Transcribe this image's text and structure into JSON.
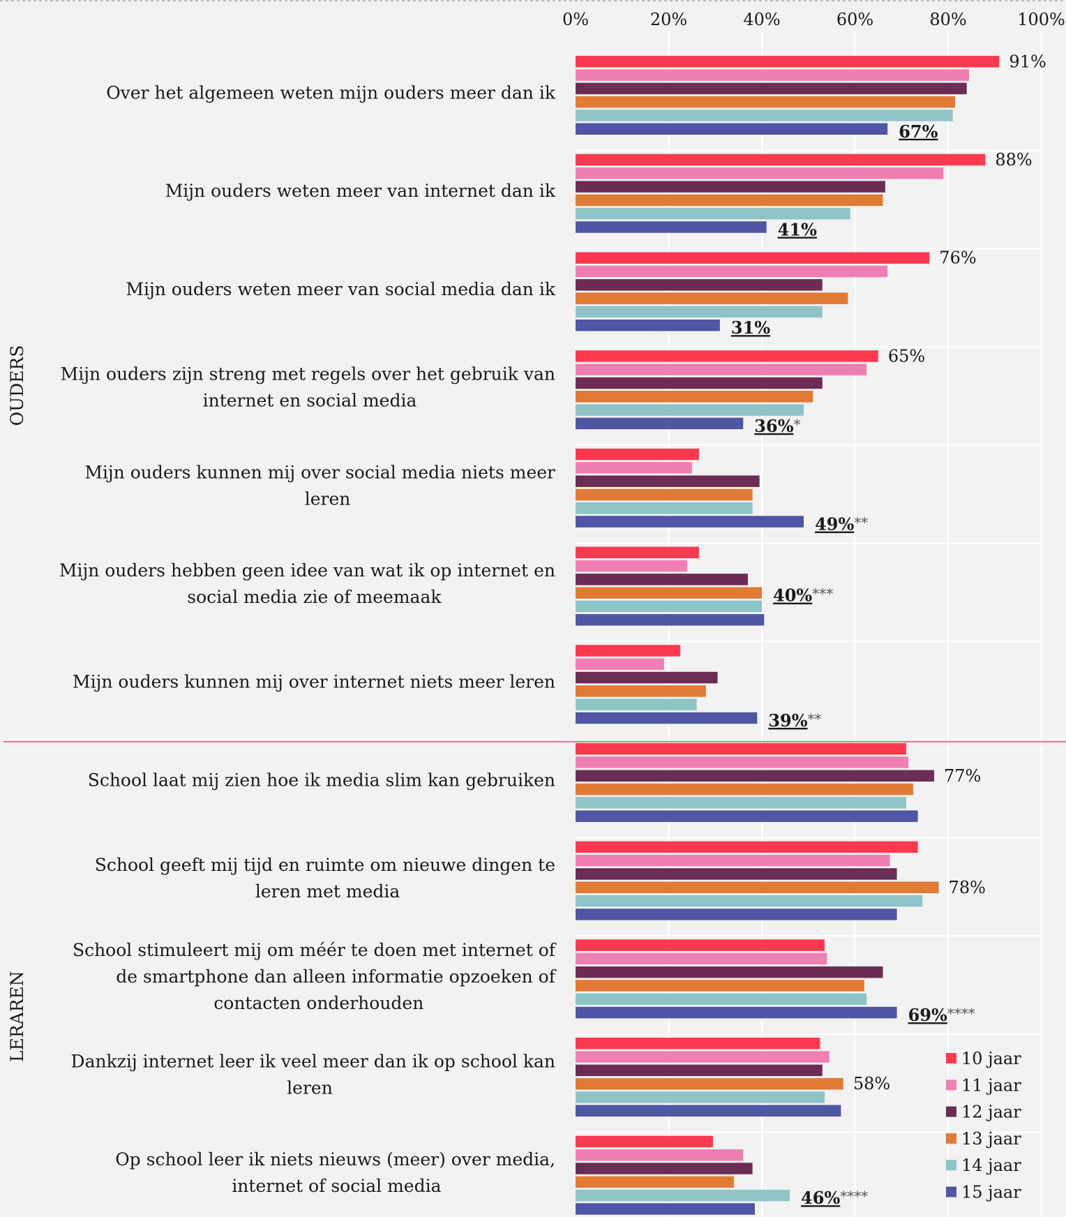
{
  "chart_data": {
    "type": "bar",
    "orientation": "horizontal",
    "xlim": [
      0,
      100
    ],
    "ticks": [
      "0%",
      "20%",
      "40%",
      "60%",
      "80%",
      "100%"
    ],
    "grid": true,
    "legend_position": "bottom-right",
    "sections": [
      {
        "label": "OUDERS",
        "rows": [
          0,
          6
        ]
      },
      {
        "label": "LERAREN",
        "rows": [
          7,
          11
        ]
      }
    ],
    "series": [
      {
        "name": "10 jaar",
        "color": "#fc3a4f"
      },
      {
        "name": "11 jaar",
        "color": "#ef7fb3"
      },
      {
        "name": "12 jaar",
        "color": "#6b2d54"
      },
      {
        "name": "13 jaar",
        "color": "#e07b35"
      },
      {
        "name": "14 jaar",
        "color": "#8ec4c6"
      },
      {
        "name": "15 jaar",
        "color": "#4f56a3"
      }
    ],
    "categories": [
      {
        "label": [
          "Over het algemeen weten mijn ouders meer dan ik"
        ],
        "values": [
          91,
          84.5,
          84,
          81.5,
          81,
          67
        ],
        "annotations": [
          {
            "series": 0,
            "text": "91%",
            "bold": false,
            "stars": ""
          },
          {
            "series": 5,
            "text": "67%",
            "bold": true,
            "stars": ""
          }
        ]
      },
      {
        "label": [
          "Mijn ouders weten meer van internet dan ik"
        ],
        "values": [
          88,
          79,
          66.5,
          66,
          59,
          41
        ],
        "annotations": [
          {
            "series": 0,
            "text": "88%",
            "bold": false,
            "stars": ""
          },
          {
            "series": 5,
            "text": "41%",
            "bold": true,
            "stars": ""
          }
        ]
      },
      {
        "label": [
          "Mijn ouders weten meer van social media dan ik"
        ],
        "values": [
          76,
          67,
          53,
          58.5,
          53,
          31
        ],
        "annotations": [
          {
            "series": 0,
            "text": "76%",
            "bold": false,
            "stars": ""
          },
          {
            "series": 5,
            "text": "31%",
            "bold": true,
            "stars": ""
          }
        ]
      },
      {
        "label": [
          "Mijn ouders zijn streng met regels over het gebruik van",
          "internet en social media"
        ],
        "values": [
          65,
          62.5,
          53,
          51,
          49,
          36
        ],
        "annotations": [
          {
            "series": 0,
            "text": "65%",
            "bold": false,
            "stars": ""
          },
          {
            "series": 5,
            "text": "36%",
            "bold": true,
            "stars": "*"
          }
        ]
      },
      {
        "label": [
          "Mijn ouders kunnen mij over social media niets meer",
          "leren"
        ],
        "values": [
          26.5,
          25,
          39.5,
          38,
          38,
          49
        ],
        "annotations": [
          {
            "series": 5,
            "text": "49%",
            "bold": true,
            "stars": "**"
          }
        ]
      },
      {
        "label": [
          "Mijn ouders hebben geen idee van wat ik op internet en",
          "social media zie of meemaak"
        ],
        "values": [
          26.5,
          24,
          37,
          40,
          40,
          40.5
        ],
        "annotations": [
          {
            "series": 3,
            "text": "40%",
            "bold": true,
            "stars": "***"
          }
        ]
      },
      {
        "label": [
          "Mijn ouders kunnen mij over internet niets meer leren"
        ],
        "values": [
          22.5,
          19,
          30.5,
          28,
          26,
          39
        ],
        "annotations": [
          {
            "series": 5,
            "text": "39%",
            "bold": true,
            "stars": "**"
          }
        ]
      },
      {
        "label": [
          "School laat mij zien hoe ik media slim kan gebruiken"
        ],
        "values": [
          71,
          71.5,
          77,
          72.5,
          71,
          73.5
        ],
        "annotations": [
          {
            "series": 2,
            "text": "77%",
            "bold": false,
            "stars": ""
          }
        ]
      },
      {
        "label": [
          "School geeft mij tijd en ruimte om nieuwe dingen te",
          "leren met media"
        ],
        "values": [
          73.5,
          67.5,
          69,
          78,
          74.5,
          69
        ],
        "annotations": [
          {
            "series": 3,
            "text": "78%",
            "bold": false,
            "stars": ""
          }
        ]
      },
      {
        "label": [
          "School stimuleert mij om méér te doen met internet of",
          "de smartphone dan alleen informatie opzoeken of",
          "contacten onderhouden"
        ],
        "values": [
          53.5,
          54,
          66,
          62,
          62.5,
          69
        ],
        "annotations": [
          {
            "series": 5,
            "text": "69%",
            "bold": true,
            "stars": "****"
          }
        ]
      },
      {
        "label": [
          "Dankzij internet leer ik veel meer dan ik op school kan",
          "leren"
        ],
        "values": [
          52.5,
          54.5,
          53,
          57.5,
          53.5,
          57
        ],
        "annotations": [
          {
            "series": 3,
            "text": "58%",
            "bold": false,
            "stars": ""
          }
        ]
      },
      {
        "label": [
          "Op school leer ik niets nieuws (meer) over media,",
          "internet of social media"
        ],
        "values": [
          29.5,
          36,
          38,
          34,
          46,
          38.5
        ],
        "annotations": [
          {
            "series": 4,
            "text": "46%",
            "bold": true,
            "stars": "****"
          }
        ]
      }
    ]
  }
}
